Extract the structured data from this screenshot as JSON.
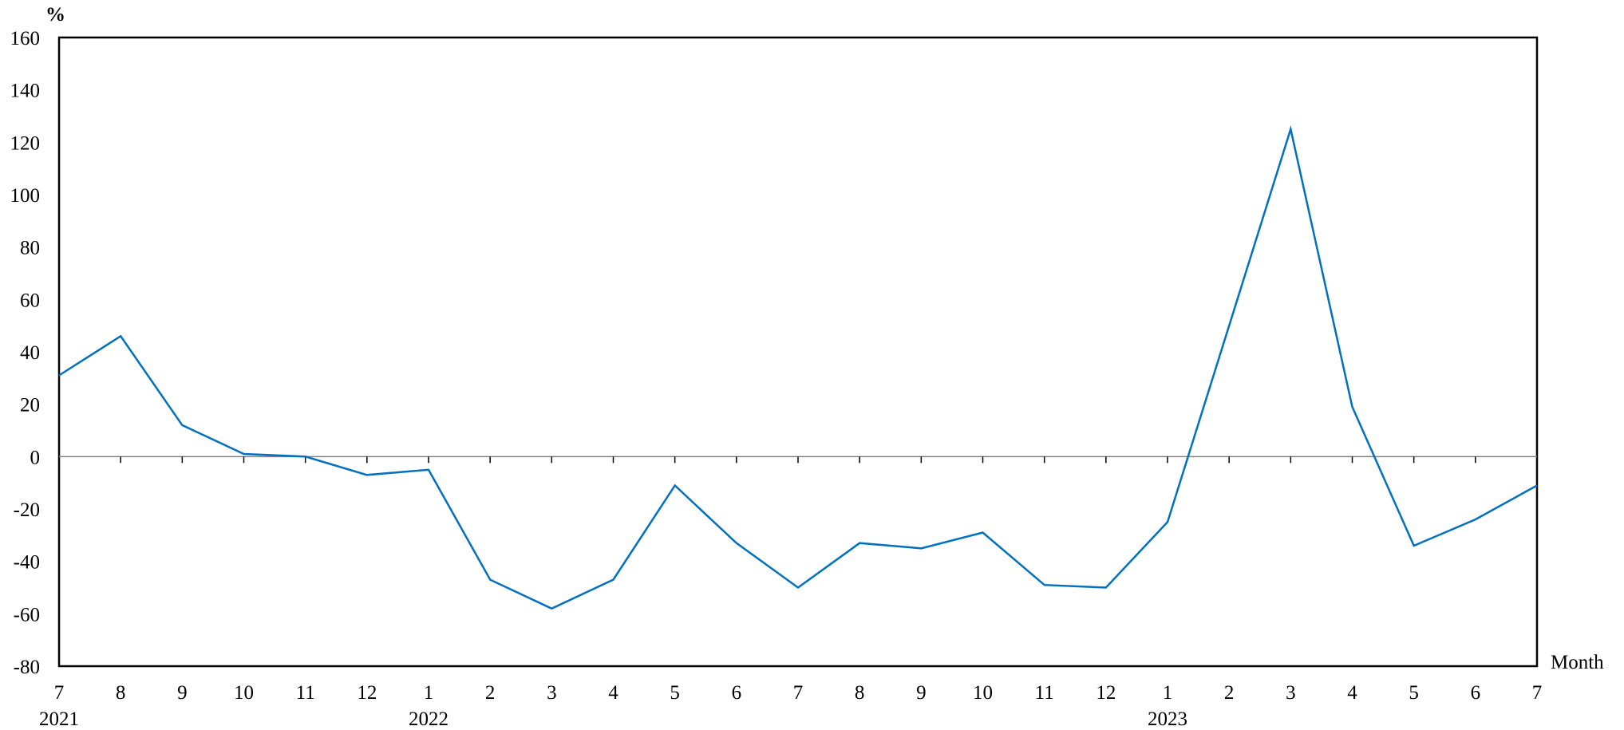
{
  "chart_data": {
    "type": "line",
    "title": "",
    "ylabel": "%",
    "xlabel": "Month",
    "ylim": [
      -80,
      160
    ],
    "yticks": [
      160,
      140,
      120,
      100,
      80,
      60,
      40,
      20,
      0,
      -20,
      -40,
      -60,
      -80
    ],
    "categories": [
      "7",
      "8",
      "9",
      "10",
      "11",
      "12",
      "1",
      "2",
      "3",
      "4",
      "5",
      "6",
      "7",
      "8",
      "9",
      "10",
      "11",
      "12",
      "1",
      "2",
      "3",
      "4",
      "5",
      "6",
      "7"
    ],
    "year_labels": [
      {
        "index": 0,
        "label": "2021"
      },
      {
        "index": 6,
        "label": "2022"
      },
      {
        "index": 18,
        "label": "2023"
      }
    ],
    "series": [
      {
        "color": "#0070c0",
        "values": [
          31,
          46,
          12,
          1,
          0,
          -7,
          -5,
          -47,
          -58,
          -47,
          -11,
          -33,
          -50,
          -33,
          -35,
          -29,
          -49,
          -50,
          -25,
          50,
          125,
          19,
          -34,
          -24,
          -11
        ]
      }
    ],
    "grid": false,
    "zero_line": true,
    "legend": "none"
  }
}
